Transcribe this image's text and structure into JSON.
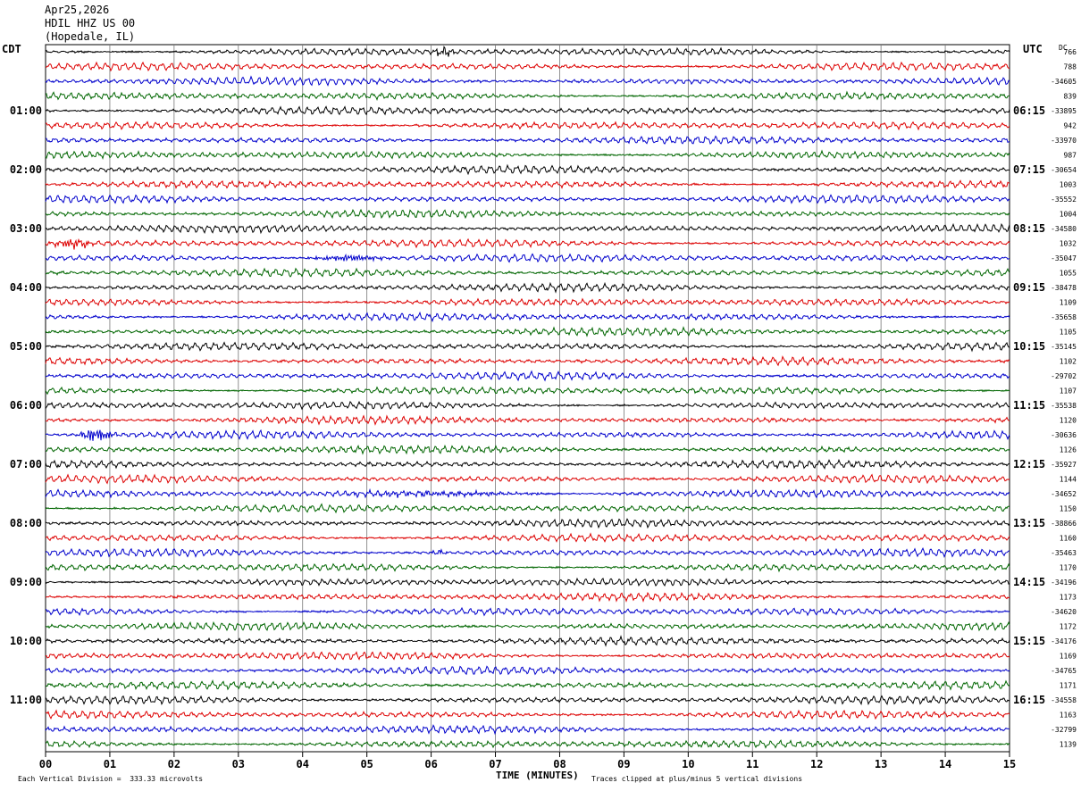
{
  "header": {
    "date": "Apr25,2026",
    "station": "HDIL HHZ US 00",
    "location": "(Hopedale, IL)"
  },
  "labels": {
    "left_tz": "CDT",
    "right_tz": "UTC",
    "dc": "DC",
    "xlabel": "TIME (MINUTES)",
    "scale_note": "Each Vertical Division =  333.33 microvolts",
    "clip_note": "Traces clipped at plus/minus 5 vertical divisions"
  },
  "chart_data": {
    "type": "line",
    "xlabel": "TIME (MINUTES)",
    "xlim": [
      0,
      15
    ],
    "x_ticks": [
      "00",
      "01",
      "02",
      "03",
      "04",
      "05",
      "06",
      "07",
      "08",
      "09",
      "10",
      "11",
      "12",
      "13",
      "14",
      "15"
    ],
    "trace_colors": [
      "#000000",
      "#dd0000",
      "#0000cc",
      "#006600"
    ],
    "left_hour_labels": [
      "01:00",
      "02:00",
      "03:00",
      "04:00",
      "05:00",
      "06:00",
      "07:00",
      "08:00",
      "09:00",
      "10:00",
      "11:00"
    ],
    "right_hour_labels": [
      "06:15",
      "07:15",
      "08:15",
      "09:15",
      "10:15",
      "11:15",
      "12:15",
      "13:15",
      "14:15",
      "15:15",
      "16:15"
    ],
    "dc_offsets": [
      "766",
      "788",
      "-34605",
      "839",
      "-33895",
      "942",
      "-33970",
      "987",
      "-30654",
      "1003",
      "-35552",
      "1004",
      "-34580",
      "1032",
      "-35047",
      "1055",
      "-38478",
      "1109",
      "-35658",
      "1105",
      "-35145",
      "1102",
      "-29702",
      "1107",
      "-35538",
      "1120",
      "-30636",
      "1126",
      "-35927",
      "1144",
      "-34652",
      "1150",
      "-38866",
      "1160",
      "-35463",
      "1170",
      "-34196",
      "1173",
      "-34620",
      "1172",
      "-34176",
      "1169",
      "-34765",
      "1171",
      "-34558",
      "1163",
      "-32799",
      "1139"
    ],
    "events": [
      {
        "row": 0,
        "minute_start": 6.0,
        "minute_end": 6.6,
        "amp": 2.6
      },
      {
        "row": 13,
        "minute_start": 0.0,
        "minute_end": 1.1,
        "amp": 3.2
      },
      {
        "row": 14,
        "minute_start": 4.0,
        "minute_end": 6.0,
        "amp": 1.8
      },
      {
        "row": 26,
        "minute_start": 0.5,
        "minute_end": 1.4,
        "amp": 4.5
      },
      {
        "row": 30,
        "minute_start": 4.0,
        "minute_end": 9.5,
        "amp": 1.6
      },
      {
        "row": 34,
        "minute_start": 6.0,
        "minute_end": 6.4,
        "amp": 1.8
      }
    ]
  }
}
